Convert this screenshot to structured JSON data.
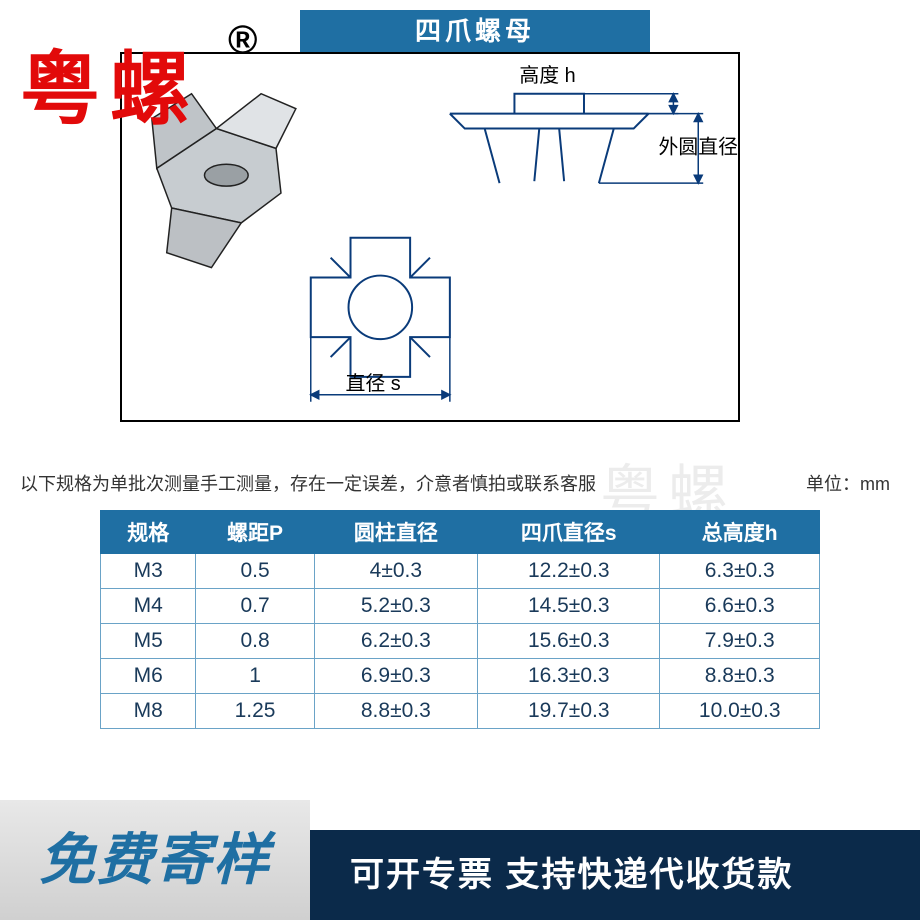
{
  "brand": {
    "text": "粤螺",
    "registered": "®",
    "color": "#e20a0a"
  },
  "title": {
    "text": "四爪螺母",
    "bg": "#1f6fa3",
    "fg": "#ffffff"
  },
  "diagram": {
    "label_height": "高度  h",
    "label_outer": "外圆直径",
    "label_diameter": "直径  s",
    "border_color": "#000000",
    "line_color": "#0a3b7a"
  },
  "note": "以下规格为单批次测量手工测量，存在一定误差，介意者慎拍或联系客服",
  "unit": "单位：mm",
  "watermark": "粤螺",
  "table": {
    "header_bg": "#1f6fa3",
    "header_fg": "#ffffff",
    "border_color": "#6aa3c7",
    "cell_fg": "#1a3a5a",
    "columns": [
      "规格",
      "螺距P",
      "圆柱直径",
      "四爪直径s",
      "总高度h"
    ],
    "rows": [
      [
        "M3",
        "0.5",
        "4±0.3",
        "12.2±0.3",
        "6.3±0.3"
      ],
      [
        "M4",
        "0.7",
        "5.2±0.3",
        "14.5±0.3",
        "6.6±0.3"
      ],
      [
        "M5",
        "0.8",
        "6.2±0.3",
        "15.6±0.3",
        "7.9±0.3"
      ],
      [
        "M6",
        "1",
        "6.9±0.3",
        "16.3±0.3",
        "8.8±0.3"
      ],
      [
        "M8",
        "1.25",
        "8.8±0.3",
        "19.7±0.3",
        "10.0±0.3"
      ]
    ]
  },
  "footer": {
    "left": "免费寄样",
    "left_bg": "#d8d8d8",
    "left_fg": "#1f6fa3",
    "right": "可开专票  支持快递代收货款",
    "right_bg": "#0b2a4a",
    "right_fg": "#ffffff"
  }
}
